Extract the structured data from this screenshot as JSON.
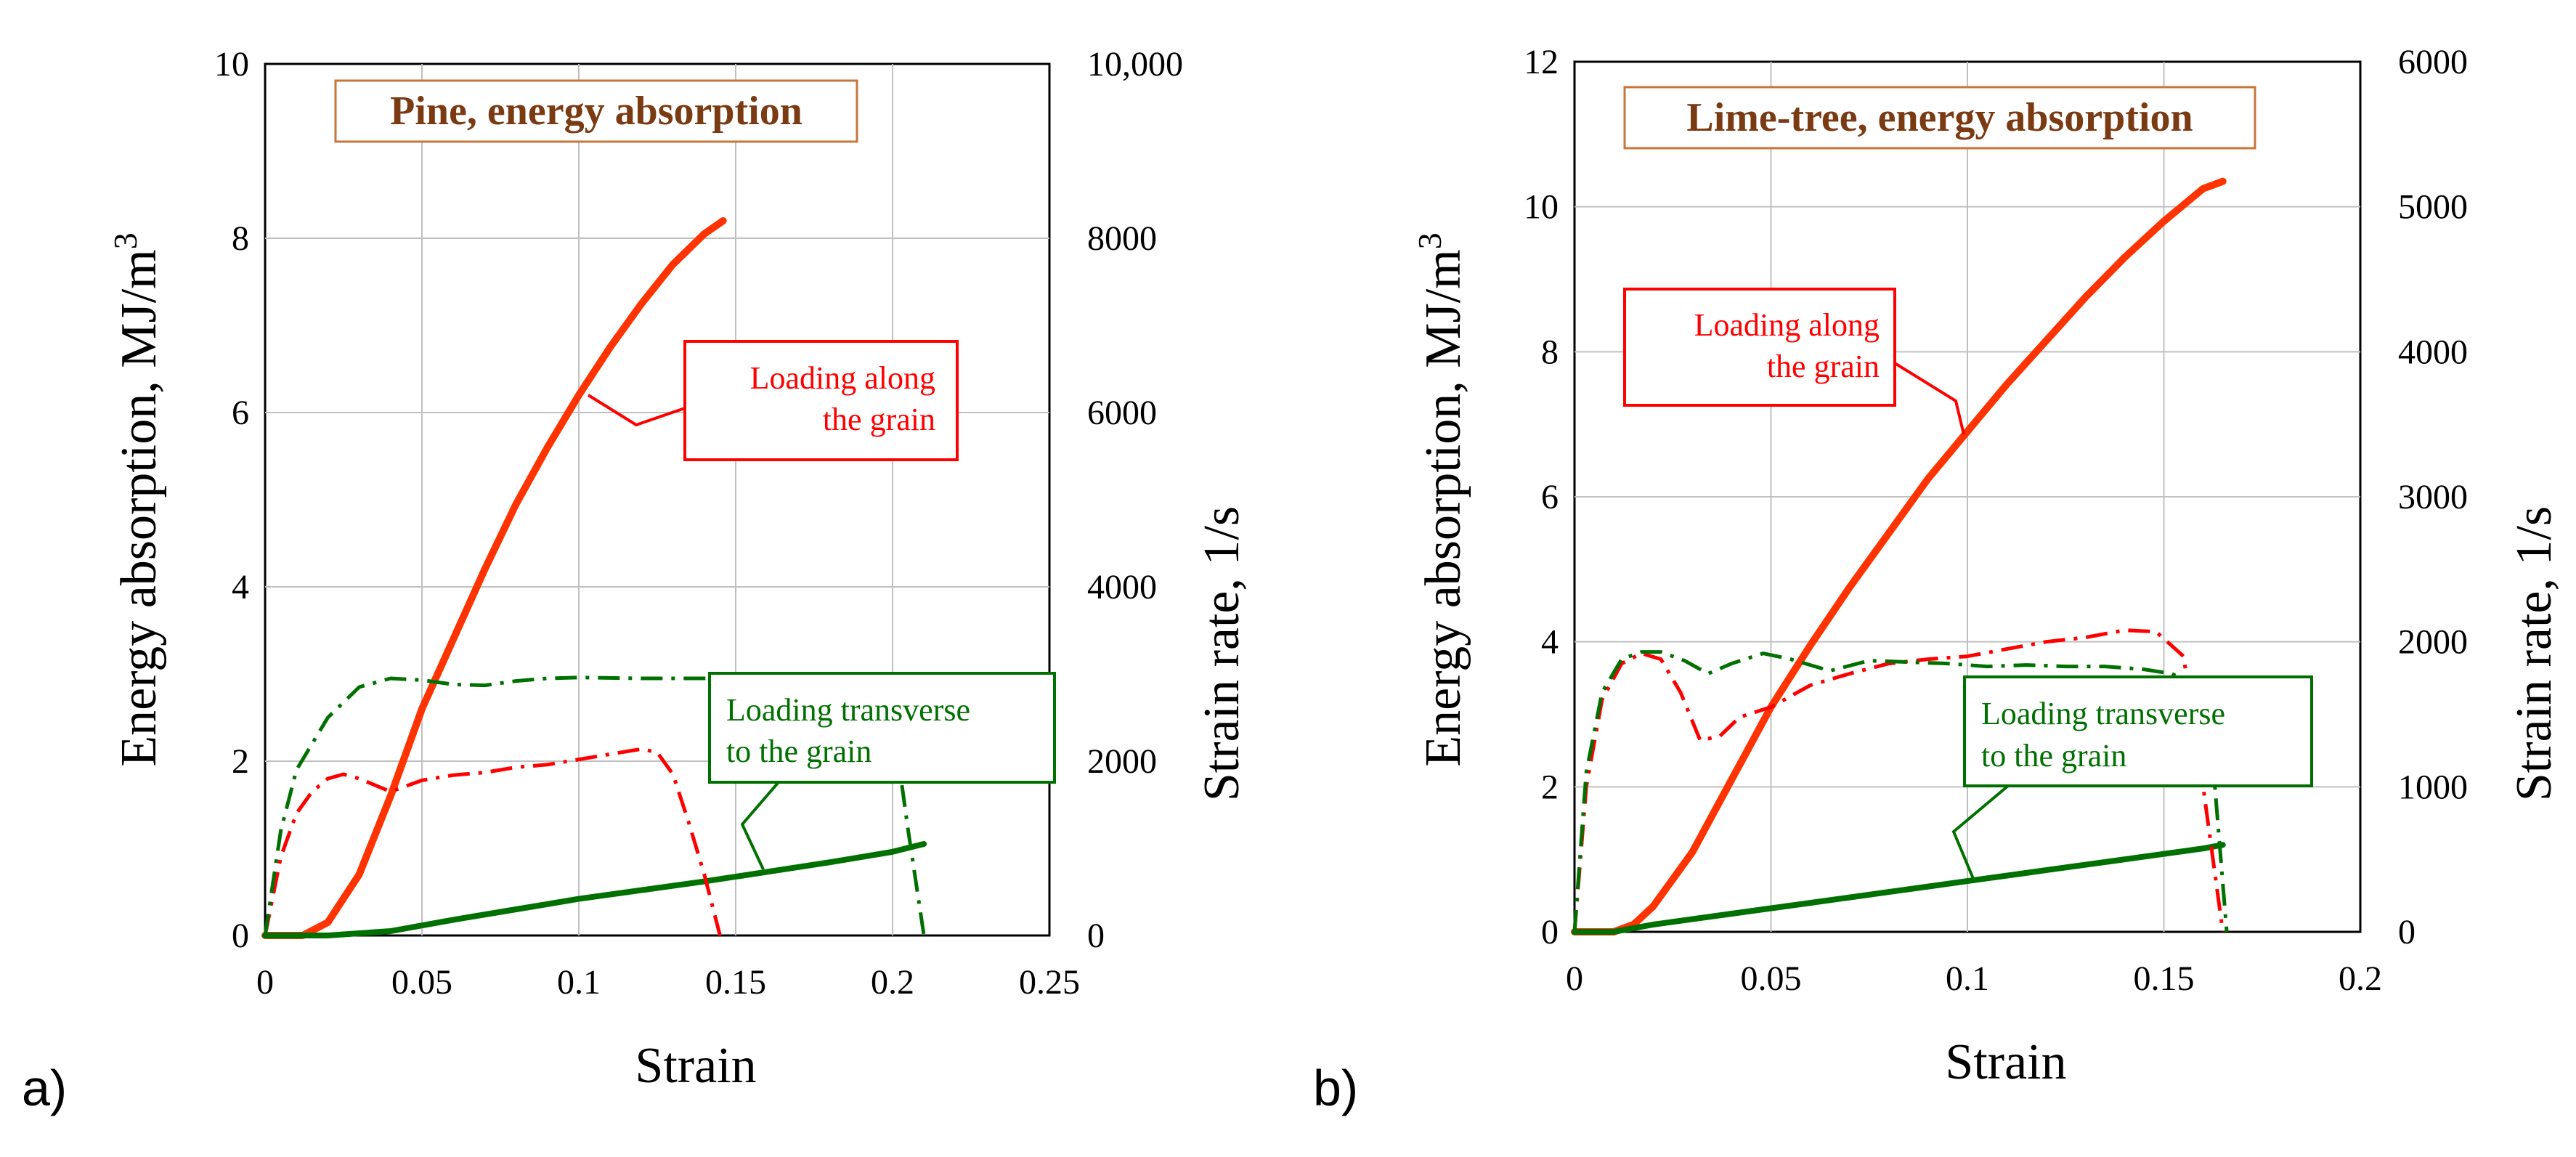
{
  "chart_data": [
    {
      "panel_label": "a)",
      "type": "line",
      "title": "Pine,  energy absorption",
      "xlabel": "Strain",
      "ylabel": "Energy absorption, MJ/m",
      "ylabel_sup": "3",
      "y2label": "Strain rate, 1/s",
      "xlim": [
        0,
        0.25
      ],
      "ylim": [
        0,
        10
      ],
      "y2lim": [
        0,
        10000
      ],
      "xticks": [
        0,
        0.05,
        0.1,
        0.15,
        0.2,
        0.25
      ],
      "xtick_labels": [
        "0",
        "0.05",
        "0.1",
        "0.15",
        "0.2",
        "0.25"
      ],
      "yticks": [
        0,
        2,
        4,
        6,
        8,
        10
      ],
      "ytick_labels": [
        "0",
        "2",
        "4",
        "6",
        "8",
        "10"
      ],
      "y2ticks": [
        0,
        2000,
        4000,
        6000,
        8000,
        10000
      ],
      "y2tick_labels": [
        "0",
        "2000",
        "4000",
        "6000",
        "8000",
        "10,000"
      ],
      "grid": true,
      "series": [
        {
          "name": "Energy absorption along the grain",
          "axis": "left",
          "color": "#ff3300",
          "style": "solid",
          "width": 10,
          "x": [
            0,
            0.012,
            0.02,
            0.03,
            0.04,
            0.05,
            0.06,
            0.07,
            0.08,
            0.09,
            0.1,
            0.11,
            0.12,
            0.13,
            0.14,
            0.146
          ],
          "y": [
            0,
            0,
            0.15,
            0.7,
            1.6,
            2.6,
            3.4,
            4.2,
            4.95,
            5.6,
            6.2,
            6.75,
            7.25,
            7.7,
            8.05,
            8.2
          ]
        },
        {
          "name": "Energy absorption transverse to the grain",
          "axis": "left",
          "color": "#007000",
          "style": "solid",
          "width": 8,
          "x": [
            0,
            0.02,
            0.04,
            0.06,
            0.08,
            0.1,
            0.12,
            0.14,
            0.16,
            0.18,
            0.2,
            0.21
          ],
          "y": [
            0,
            0,
            0.05,
            0.18,
            0.3,
            0.42,
            0.52,
            0.62,
            0.73,
            0.84,
            0.96,
            1.05
          ]
        },
        {
          "name": "Strain rate along the grain",
          "axis": "right",
          "color": "#ff0000",
          "style": "dashdot",
          "width": 5,
          "x": [
            0,
            0.005,
            0.01,
            0.015,
            0.02,
            0.025,
            0.03,
            0.04,
            0.05,
            0.06,
            0.07,
            0.08,
            0.09,
            0.1,
            0.11,
            0.12,
            0.125,
            0.13,
            0.135,
            0.14,
            0.145
          ],
          "y": [
            0,
            900,
            1400,
            1650,
            1800,
            1850,
            1800,
            1650,
            1780,
            1840,
            1870,
            1930,
            1960,
            2020,
            2080,
            2140,
            2100,
            1850,
            1300,
            700,
            0
          ]
        },
        {
          "name": "Strain rate transverse to the grain",
          "axis": "right",
          "color": "#007000",
          "style": "dashdot",
          "width": 5,
          "x": [
            0,
            0.005,
            0.01,
            0.02,
            0.03,
            0.04,
            0.05,
            0.06,
            0.07,
            0.08,
            0.09,
            0.1,
            0.12,
            0.14,
            0.16,
            0.18,
            0.195,
            0.2,
            0.205,
            0.21
          ],
          "y": [
            0,
            1200,
            1900,
            2500,
            2850,
            2950,
            2930,
            2880,
            2870,
            2920,
            2950,
            2960,
            2950,
            2950,
            2950,
            2950,
            2900,
            2500,
            1200,
            0
          ]
        }
      ],
      "annotations": [
        {
          "text": [
            "Loading along",
            "the grain"
          ],
          "color": "#ff0000"
        },
        {
          "text": [
            "Loading transverse",
            "to the grain"
          ],
          "color": "#007000"
        }
      ]
    },
    {
      "panel_label": "b)",
      "type": "line",
      "title": "Lime-tree,  energy absorption",
      "xlabel": "Strain",
      "ylabel": "Energy absorption, MJ/m",
      "ylabel_sup": "3",
      "y2label": "Strain rate, 1/s",
      "xlim": [
        0,
        0.2
      ],
      "ylim": [
        0,
        12
      ],
      "y2lim": [
        0,
        6000
      ],
      "xticks": [
        0,
        0.05,
        0.1,
        0.15,
        0.2
      ],
      "xtick_labels": [
        "0",
        "0.05",
        "0.1",
        "0.15",
        "0.2"
      ],
      "yticks": [
        0,
        2,
        4,
        6,
        8,
        10,
        12
      ],
      "ytick_labels": [
        "0",
        "2",
        "4",
        "6",
        "8",
        "10",
        "12"
      ],
      "y2ticks": [
        0,
        1000,
        2000,
        3000,
        4000,
        5000,
        6000
      ],
      "y2tick_labels": [
        "0",
        "1000",
        "2000",
        "3000",
        "4000",
        "5000",
        "6000"
      ],
      "grid": true,
      "series": [
        {
          "name": "Energy absorption along the grain",
          "axis": "left",
          "color": "#ff3300",
          "style": "solid",
          "width": 10,
          "x": [
            0,
            0.01,
            0.015,
            0.02,
            0.03,
            0.04,
            0.05,
            0.06,
            0.07,
            0.08,
            0.09,
            0.1,
            0.11,
            0.12,
            0.13,
            0.14,
            0.15,
            0.16,
            0.165
          ],
          "y": [
            0,
            0,
            0.1,
            0.35,
            1.1,
            2.1,
            3.1,
            3.95,
            4.75,
            5.5,
            6.25,
            6.9,
            7.55,
            8.15,
            8.75,
            9.3,
            9.8,
            10.25,
            10.35
          ]
        },
        {
          "name": "Energy absorption transverse to the grain",
          "axis": "left",
          "color": "#007000",
          "style": "solid",
          "width": 8,
          "x": [
            0,
            0.01,
            0.02,
            0.04,
            0.06,
            0.08,
            0.1,
            0.12,
            0.14,
            0.16,
            0.165
          ],
          "y": [
            0,
            0,
            0.1,
            0.25,
            0.4,
            0.55,
            0.7,
            0.85,
            1.0,
            1.15,
            1.2
          ]
        },
        {
          "name": "Strain rate along the grain",
          "axis": "right",
          "color": "#ff0000",
          "style": "dashdot",
          "width": 5,
          "x": [
            0,
            0.003,
            0.007,
            0.012,
            0.017,
            0.022,
            0.027,
            0.032,
            0.037,
            0.042,
            0.05,
            0.06,
            0.07,
            0.08,
            0.09,
            0.1,
            0.11,
            0.12,
            0.13,
            0.14,
            0.148,
            0.155,
            0.16,
            0.165
          ],
          "y": [
            0,
            1000,
            1600,
            1850,
            1920,
            1880,
            1650,
            1320,
            1350,
            1480,
            1550,
            1700,
            1780,
            1850,
            1880,
            1900,
            1950,
            2000,
            2030,
            2080,
            2070,
            1900,
            1000,
            0
          ]
        },
        {
          "name": "Strain rate transverse to the grain",
          "axis": "right",
          "color": "#007000",
          "style": "dashdot",
          "width": 5,
          "x": [
            0,
            0.003,
            0.007,
            0.012,
            0.017,
            0.022,
            0.028,
            0.034,
            0.04,
            0.048,
            0.055,
            0.065,
            0.075,
            0.085,
            0.095,
            0.105,
            0.115,
            0.125,
            0.135,
            0.145,
            0.152,
            0.158,
            0.163,
            0.166
          ],
          "y": [
            0,
            1100,
            1650,
            1880,
            1930,
            1930,
            1870,
            1780,
            1850,
            1920,
            1880,
            1800,
            1870,
            1860,
            1850,
            1830,
            1840,
            1830,
            1830,
            1810,
            1780,
            1700,
            1000,
            0
          ]
        }
      ],
      "annotations": [
        {
          "text": [
            "Loading along",
            "the grain"
          ],
          "color": "#ff0000"
        },
        {
          "text": [
            "Loading transverse",
            "to the grain"
          ],
          "color": "#007000"
        }
      ]
    }
  ]
}
